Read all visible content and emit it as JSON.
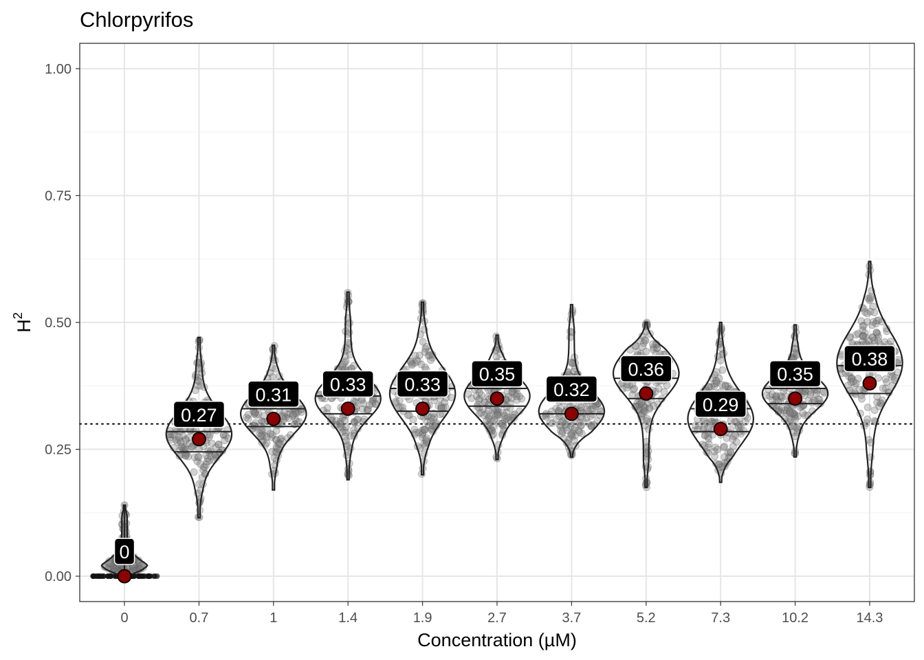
{
  "chart_data": {
    "type": "violin",
    "title": "Chlorpyrifos",
    "xlabel": "Concentration (µM)",
    "ylabel": "H",
    "ylabel_superscript": "2",
    "ylim": [
      -0.05,
      1.05
    ],
    "yticks": [
      "0.00",
      "0.25",
      "0.50",
      "0.75",
      "1.00"
    ],
    "categories": [
      "0",
      "0.7",
      "1",
      "1.4",
      "1.9",
      "2.7",
      "3.7",
      "5.2",
      "7.3",
      "10.2",
      "14.3"
    ],
    "means": [
      0.0,
      0.27,
      0.31,
      0.33,
      0.33,
      0.35,
      0.32,
      0.36,
      0.29,
      0.35,
      0.38
    ],
    "mean_labels": [
      "0",
      "0.27",
      "0.31",
      "0.33",
      "0.33",
      "0.35",
      "0.32",
      "0.36",
      "0.29",
      "0.35",
      "0.38"
    ],
    "reference_line": 0.3,
    "grid": true,
    "distributions": [
      {
        "min": 0.0,
        "max": 0.14,
        "q1": 0.0,
        "median": 0.0,
        "q3": 0.0,
        "mode": 0.0
      },
      {
        "min": 0.115,
        "max": 0.47,
        "q1": 0.245,
        "median": 0.27,
        "q3": 0.285,
        "mode": 0.28
      },
      {
        "min": 0.17,
        "max": 0.455,
        "q1": 0.295,
        "median": 0.31,
        "q3": 0.33,
        "mode": 0.32
      },
      {
        "min": 0.19,
        "max": 0.56,
        "q1": 0.32,
        "median": 0.33,
        "q3": 0.355,
        "mode": 0.35
      },
      {
        "min": 0.2,
        "max": 0.54,
        "q1": 0.325,
        "median": 0.33,
        "q3": 0.37,
        "mode": 0.36
      },
      {
        "min": 0.23,
        "max": 0.475,
        "q1": 0.335,
        "median": 0.35,
        "q3": 0.37,
        "mode": 0.355
      },
      {
        "min": 0.235,
        "max": 0.535,
        "q1": 0.32,
        "median": 0.325,
        "q3": 0.355,
        "mode": 0.325
      },
      {
        "min": 0.175,
        "max": 0.5,
        "q1": 0.35,
        "median": 0.36,
        "q3": 0.39,
        "mode": 0.4
      },
      {
        "min": 0.185,
        "max": 0.5,
        "q1": 0.285,
        "median": 0.29,
        "q3": 0.33,
        "mode": 0.31
      },
      {
        "min": 0.235,
        "max": 0.495,
        "q1": 0.34,
        "median": 0.35,
        "q3": 0.37,
        "mode": 0.36
      },
      {
        "min": 0.175,
        "max": 0.62,
        "q1": 0.36,
        "median": 0.38,
        "q3": 0.415,
        "mode": 0.42
      }
    ]
  },
  "colors": {
    "point_fill": "#8b0000",
    "label_bg": "#000000",
    "violin_stroke": "#222222",
    "jitter": "#7f7f7f",
    "grid_major": "#e6e6e6",
    "grid_minor": "#f2f2f2"
  }
}
